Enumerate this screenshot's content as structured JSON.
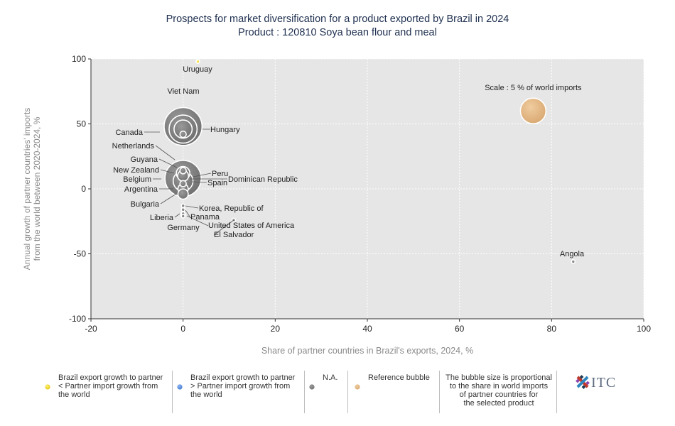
{
  "title_line1": "Prospects for market diversification for a product exported by Brazil in 2024",
  "title_line2": "Product : 120810 Soya bean flour and meal",
  "chart_data": {
    "type": "scatter",
    "xlabel": "Share of partner countries in Brazil's exports, 2024, %",
    "ylabel_line1": "Annual growth of partner countries' imports",
    "ylabel_line2": "from the world between 2020-2024, %",
    "xlim": [
      -20,
      100
    ],
    "ylim": [
      -100,
      100
    ],
    "x_ticks": [
      -20,
      0,
      20,
      40,
      60,
      80,
      100
    ],
    "y_ticks": [
      -100,
      -50,
      0,
      50,
      100
    ],
    "grid": true,
    "colors": {
      "plot_bg": "#e6e6e6",
      "bubble_fill": "#7f7f7f",
      "bubble_stroke": "#ffffff",
      "reference_fill": "#e2b887",
      "yellow": "#f2d500",
      "blue": "#4a86e8",
      "grey": "#707070"
    },
    "reference_bubble": {
      "label": "Scale : 5 % of world imports",
      "x": 76,
      "y": 60,
      "share_world_imports": 5
    },
    "points": [
      {
        "name": "Uruguay",
        "x": 3.2,
        "y": 98,
        "share_world_imports": 0.05,
        "color": "yellow"
      },
      {
        "name": "Viet Nam",
        "x": 0,
        "y": 48,
        "share_world_imports": 11.0,
        "color": "grey"
      },
      {
        "name": "Hungary",
        "x": 0,
        "y": 46,
        "share_world_imports": 6.0,
        "color": "grey"
      },
      {
        "name": "Canada",
        "x": 0,
        "y": 46,
        "share_world_imports": 2.5,
        "color": "grey"
      },
      {
        "name": "Netherlands",
        "x": 0,
        "y": 42,
        "share_world_imports": 0.3,
        "color": "grey"
      },
      {
        "name": "Guyana",
        "x": 0,
        "y": 14,
        "share_world_imports": 0.3,
        "color": "grey"
      },
      {
        "name": "New Zealand",
        "x": 0,
        "y": 12,
        "share_world_imports": 1.4,
        "color": "grey"
      },
      {
        "name": "Peru",
        "x": 0,
        "y": 10,
        "share_world_imports": 0.9,
        "color": "grey"
      },
      {
        "name": "Belgium",
        "x": 0,
        "y": 8,
        "share_world_imports": 10.0,
        "color": "grey"
      },
      {
        "name": "Spain",
        "x": 0,
        "y": 6,
        "share_world_imports": 3.0,
        "color": "grey"
      },
      {
        "name": "Dominican Republic",
        "x": 0,
        "y": 4,
        "share_world_imports": 0.3,
        "color": "grey"
      },
      {
        "name": "Argentina",
        "x": 0,
        "y": 0,
        "share_world_imports": 0.8,
        "color": "grey"
      },
      {
        "name": "Bulgaria",
        "x": 0,
        "y": -4,
        "share_world_imports": 0.8,
        "color": "grey"
      },
      {
        "name": "Korea, Republic of",
        "x": 0,
        "y": -13,
        "share_world_imports": 0.1,
        "color": "grey"
      },
      {
        "name": "Panama",
        "x": 0,
        "y": -16,
        "share_world_imports": 0.1,
        "color": "grey"
      },
      {
        "name": "Liberia",
        "x": 0,
        "y": -19,
        "share_world_imports": 0.05,
        "color": "grey"
      },
      {
        "name": "Germany",
        "x": 0,
        "y": -20,
        "share_world_imports": 0.15,
        "color": "grey"
      },
      {
        "name": "United States of America",
        "x": 0,
        "y": -21,
        "share_world_imports": 0.05,
        "color": "grey"
      },
      {
        "name": "El Salvador",
        "x": 11,
        "y": -24,
        "share_world_imports": 0.02,
        "color": "grey"
      },
      {
        "name": "Angola",
        "x": 84.7,
        "y": -56,
        "share_world_imports": 0.03,
        "color": "grey"
      }
    ]
  },
  "legend": {
    "items": [
      {
        "label_lines": [
          "Brazil export growth to partner",
          "< Partner import growth from",
          "the world"
        ],
        "color": "yellow"
      },
      {
        "label_lines": [
          "Brazil export growth to partner",
          "> Partner import growth from",
          "the world"
        ],
        "color": "blue"
      },
      {
        "label_lines": [
          "N.A."
        ],
        "color": "grey"
      },
      {
        "label_lines": [
          "Reference bubble"
        ],
        "color": "reference"
      }
    ],
    "note_lines": [
      "The bubble size is proportional",
      "to the share in world imports",
      "of partner countries for",
      "the selected product"
    ]
  },
  "logo_text": "ITC"
}
